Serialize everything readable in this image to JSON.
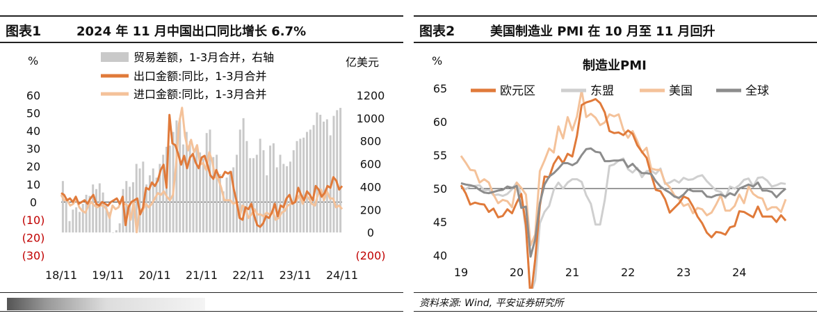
{
  "left": {
    "fig_label": "图表1",
    "title": "2024 年 11 月中国出口同比增长 6.7%",
    "left_unit": "%",
    "right_unit": "亿美元",
    "legend": [
      "贸易差额，1-3月合并，右轴",
      "出口金额:同比，1-3月合并",
      "进口金额:同比，1-3月合并"
    ],
    "colors": {
      "balance": "#c9c9c9",
      "export": "#e07a3a",
      "import": "#f4c29a",
      "negative_tick": "#c00000"
    },
    "y_left_ticks": [
      "60",
      "50",
      "40",
      "30",
      "20",
      "10",
      "0",
      "(10)",
      "(20)",
      "(30)"
    ],
    "y_right_ticks": [
      "1200",
      "1000",
      "800",
      "600",
      "400",
      "200",
      "0",
      "(200)"
    ],
    "x_ticks": [
      "18/11",
      "19/11",
      "20/11",
      "21/11",
      "22/11",
      "23/11",
      "24/11"
    ]
  },
  "right": {
    "fig_label": "图表2",
    "title": "美国制造业 PMI 在 10 月至 11 月回升",
    "unit": "%",
    "chart_title": "制造业PMI",
    "legend": [
      "欧元区",
      "东盟",
      "美国",
      "全球"
    ],
    "colors": {
      "euro": "#e07a3a",
      "asean": "#cfcfcf",
      "us": "#f4c29a",
      "global": "#8c8c8c"
    },
    "y_ticks": [
      "65",
      "60",
      "55",
      "50",
      "45",
      "40"
    ],
    "x_ticks": [
      "19",
      "20",
      "21",
      "22",
      "23",
      "24"
    ],
    "source": "资料来源: Wind, 平安证券研究所"
  },
  "chart_data": [
    {
      "type": "bar",
      "title": "2024 年 11 月中国出口同比增长 6.7%",
      "x_start": "2018-11",
      "x_end": "2024-11",
      "ylim_left": [
        -30,
        60
      ],
      "ylim_right": [
        -200,
        1200
      ],
      "series": [
        {
          "name": "贸易差额，1-3月合并，右轴",
          "axis": "right",
          "kind": "bar",
          "values": [
            450,
            300,
            100,
            200,
            220,
            180,
            250,
            330,
            320,
            420,
            380,
            430,
            350,
            250,
            180,
            0,
            20,
            80,
            380,
            450,
            400,
            440,
            600,
            560,
            620,
            420,
            500,
            560,
            480,
            600,
            680,
            750,
            760,
            880,
            980,
            1000,
            770,
            880,
            800,
            700,
            760,
            700,
            650,
            870,
            900,
            660,
            680,
            510,
            360,
            480,
            540,
            570,
            680,
            900,
            1000,
            800,
            650,
            650,
            680,
            820,
            720,
            500,
            760,
            780,
            570,
            680,
            600,
            580,
            620,
            720,
            800,
            820,
            830,
            880,
            900,
            940,
            1050,
            1030,
            970,
            990,
            850,
            1020,
            1070,
            1090
          ]
        },
        {
          "name": "出口金额:同比，1-3月合并",
          "axis": "left",
          "kind": "line",
          "values": [
            5,
            4,
            1,
            2,
            0,
            3,
            -1,
            0,
            1,
            -1,
            2,
            4,
            -1,
            -2,
            0,
            -1,
            -2,
            0,
            1,
            2,
            -1,
            3,
            -13,
            -3,
            0,
            1,
            2,
            -7,
            -3,
            8,
            7,
            11,
            9,
            12,
            18,
            21,
            8,
            49,
            33,
            32,
            27,
            21,
            26,
            19,
            25,
            27,
            22,
            19,
            25,
            26,
            21,
            15,
            13,
            18,
            14,
            14,
            17,
            16,
            17,
            7,
            0,
            -9,
            -10,
            -3,
            -4,
            -1,
            -8,
            -13,
            -14,
            -12,
            -8,
            -9,
            -6,
            -1,
            -8,
            -2,
            -3,
            2,
            4,
            -1,
            0,
            8,
            4,
            1,
            6,
            4,
            1,
            9,
            7,
            3,
            5,
            9,
            8,
            14,
            12,
            7,
            9
          ]
        },
        {
          "name": "进口金额:同比，1-3月合并",
          "axis": "left",
          "kind": "line",
          "values": [
            4,
            1,
            1,
            -2,
            -1,
            2,
            -3,
            -5,
            -6,
            -2,
            0,
            -2,
            -3,
            -2,
            -2,
            -4,
            -9,
            -2,
            -4,
            -3,
            1,
            -1,
            -2,
            -10,
            0,
            -17,
            -4,
            -5,
            -1,
            -3,
            -1,
            2,
            5,
            4,
            6,
            3,
            1,
            4,
            20,
            44,
            53,
            37,
            29,
            35,
            28,
            32,
            21,
            22,
            18,
            28,
            23,
            14,
            13,
            8,
            1,
            1,
            1,
            -1,
            0,
            -9,
            -2,
            -3,
            -9,
            -7,
            -4,
            -7,
            -7,
            -8,
            -6,
            -7,
            -5,
            -10,
            -9,
            -6,
            -5,
            -2,
            -1,
            0,
            1,
            4,
            -1,
            4,
            2,
            -1,
            -2,
            4,
            7,
            1,
            6,
            2,
            2,
            -3,
            -2,
            -4
          ]
        }
      ]
    },
    {
      "type": "line",
      "title": "制造业PMI",
      "x_start": "2019-01",
      "x_end": "2024-11",
      "ylim": [
        40,
        65
      ],
      "series": [
        {
          "name": "欧元区",
          "values": [
            50.5,
            49.3,
            47.6,
            47.9,
            47.7,
            47.6,
            46.5,
            47.0,
            45.7,
            45.9,
            46.9,
            46.3,
            47.9,
            49.2,
            44.5,
            33.4,
            39.4,
            47.4,
            51.8,
            51.7,
            53.7,
            54.8,
            53.8,
            55.2,
            54.8,
            57.9,
            62.5,
            62.9,
            63.1,
            63.4,
            62.8,
            61.4,
            58.6,
            58.3,
            58.4,
            58.0,
            58.7,
            58.2,
            56.5,
            55.5,
            54.6,
            52.1,
            49.8,
            49.6,
            48.4,
            46.4,
            47.1,
            47.8,
            48.8,
            48.5,
            47.3,
            45.8,
            44.8,
            43.4,
            42.7,
            43.5,
            43.4,
            43.1,
            44.2,
            44.4,
            46.6,
            46.5,
            46.1,
            45.7,
            47.3,
            45.8,
            45.8,
            45.8,
            45.0,
            46.0,
            45.2
          ]
        },
        {
          "name": "东盟",
          "values": [
            50.3,
            49.9,
            50.4,
            50.4,
            50.5,
            49.7,
            49.8,
            49.0,
            49.1,
            48.9,
            49.2,
            49.9,
            50.9,
            49.0,
            43.7,
            34.1,
            36.3,
            44.8,
            46.5,
            47.4,
            49.8,
            50.9,
            50.0,
            50.9,
            51.4,
            51.4,
            51.0,
            49.0,
            47.7,
            44.6,
            44.6,
            48.3,
            53.4,
            53.6,
            54.2,
            54.5,
            52.9,
            52.4,
            53.1,
            51.7,
            52.6,
            52.7,
            52.2,
            53.0,
            50.7,
            50.9,
            51.3,
            50.9,
            51.6,
            51.3,
            51.4,
            51.8,
            52.0,
            51.1,
            50.4,
            49.7,
            49.5,
            48.6,
            50.3,
            50.0,
            50.5,
            51.3,
            51.5,
            50.3,
            51.6,
            51.7,
            51.2,
            50.3,
            50.5,
            50.8,
            50.7
          ]
        },
        {
          "name": "美国",
          "values": [
            54.9,
            53.9,
            52.8,
            52.7,
            50.9,
            51.4,
            50.9,
            49.1,
            47.8,
            48.3,
            48.1,
            47.2,
            50.9,
            50.1,
            49.1,
            41.5,
            43.1,
            52.6,
            54.2,
            56.0,
            55.4,
            59.3,
            57.5,
            60.7,
            58.7,
            60.8,
            64.7,
            60.7,
            61.2,
            60.6,
            59.5,
            59.9,
            61.1,
            60.8,
            61.1,
            58.8,
            57.6,
            58.6,
            57.1,
            55.4,
            56.1,
            53.0,
            52.8,
            52.8,
            50.9,
            50.2,
            49.0,
            48.4,
            47.4,
            47.7,
            46.3,
            47.1,
            46.9,
            46.0,
            46.4,
            47.6,
            49.0,
            46.7,
            46.7,
            47.4,
            49.1,
            47.8,
            50.3,
            49.2,
            48.7,
            48.5,
            46.8,
            47.2,
            47.2,
            46.5,
            48.4
          ]
        },
        {
          "name": "全球",
          "values": [
            50.8,
            50.6,
            50.5,
            50.3,
            49.8,
            49.4,
            49.3,
            49.5,
            49.7,
            49.8,
            50.3,
            50.1,
            50.4,
            47.1,
            47.3,
            39.8,
            42.4,
            47.8,
            50.6,
            51.8,
            52.3,
            53.0,
            53.8,
            53.8,
            53.5,
            53.9,
            55.0,
            55.9,
            56.0,
            55.5,
            55.4,
            54.1,
            54.1,
            54.2,
            54.2,
            54.3,
            53.2,
            53.7,
            52.9,
            52.3,
            52.3,
            52.2,
            51.1,
            50.3,
            49.8,
            49.4,
            48.8,
            48.6,
            49.1,
            49.9,
            49.6,
            49.6,
            49.6,
            48.8,
            48.7,
            49.0,
            49.1,
            48.8,
            49.3,
            49.0,
            50.0,
            50.3,
            50.6,
            50.3,
            50.9,
            49.7,
            49.7,
            49.5,
            48.7,
            49.4,
            50.0
          ]
        }
      ]
    }
  ]
}
